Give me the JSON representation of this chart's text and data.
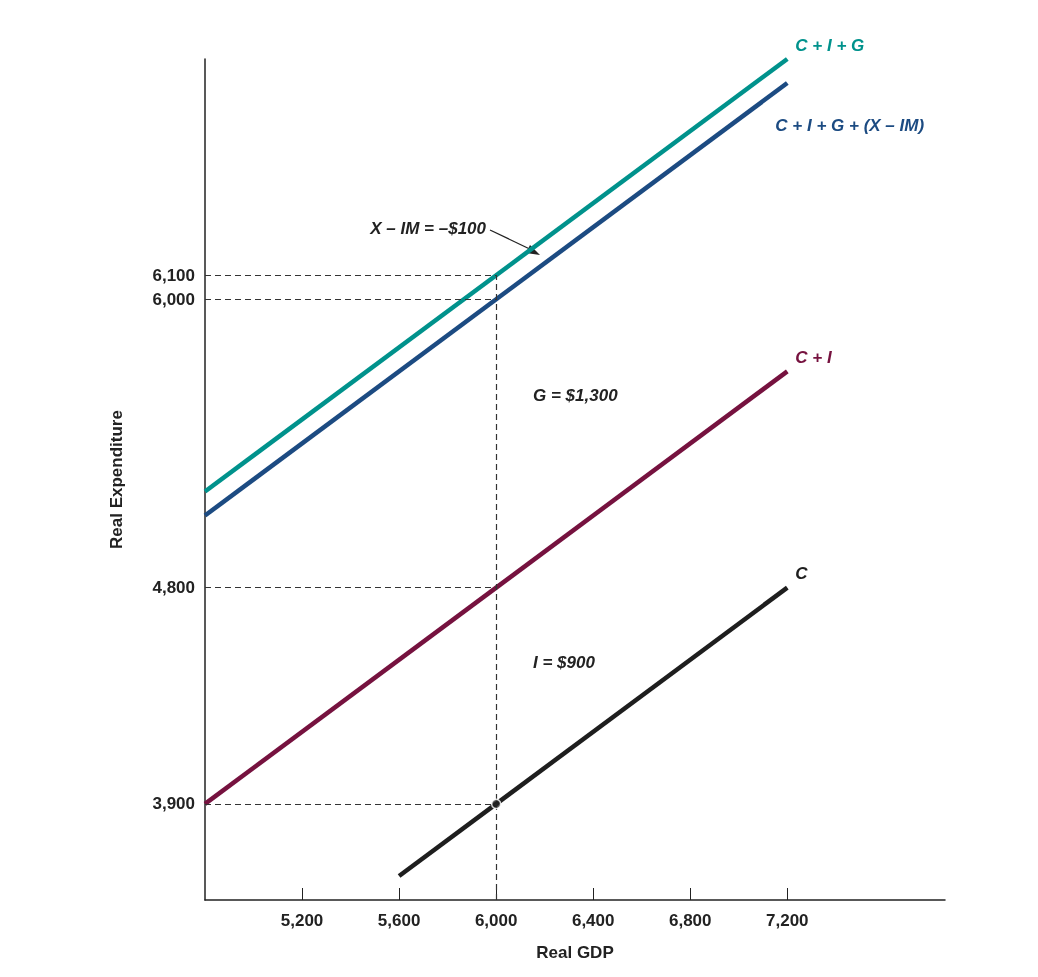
{
  "chart_data": {
    "type": "line",
    "xlabel": "Real GDP",
    "ylabel": "Real Expenditure",
    "xlim": [
      4800,
      7850
    ],
    "ylim": [
      3500,
      7000
    ],
    "xticks": [
      {
        "value": 5200,
        "label": "5,200"
      },
      {
        "value": 5600,
        "label": "5,600"
      },
      {
        "value": 6000,
        "label": "6,000"
      },
      {
        "value": 6400,
        "label": "6,400"
      },
      {
        "value": 6800,
        "label": "6,800"
      },
      {
        "value": 7200,
        "label": "7,200"
      }
    ],
    "yticks": [
      {
        "value": 3900,
        "label": "3,900"
      },
      {
        "value": 4800,
        "label": "4,800"
      },
      {
        "value": 6000,
        "label": "6,000"
      },
      {
        "value": 6100,
        "label": "6,100"
      }
    ],
    "series": [
      {
        "name": "C + I + G",
        "color": "#00928c",
        "x": [
          4800,
          7200
        ],
        "values": [
          5200,
          7000
        ]
      },
      {
        "name": "C + I + G + (X – IM)",
        "color": "#1c4b82",
        "x": [
          4800,
          7200
        ],
        "values": [
          5100,
          6900
        ]
      },
      {
        "name": "C + I",
        "color": "#76123f",
        "x": [
          4800,
          7200
        ],
        "values": [
          3900,
          5700
        ]
      },
      {
        "name": "C",
        "color": "#1e1e1e",
        "x": [
          5600,
          7200
        ],
        "values": [
          3600,
          4800
        ]
      },
      {
        "type": "scatter",
        "color": "#1e1e1e",
        "x": [
          6000
        ],
        "values": [
          3900
        ]
      }
    ],
    "ref_lines": [
      {
        "axis": "x",
        "value": 6000
      },
      {
        "axis": "y",
        "value": 6100
      },
      {
        "axis": "y",
        "value": 6000
      },
      {
        "axis": "y",
        "value": 4800
      },
      {
        "axis": "y",
        "value": 3900
      }
    ],
    "annotations": [
      "X – IM = –$100",
      "G = $1,300",
      "I = $900"
    ],
    "grid": false,
    "legend": false,
    "line_style": "solid"
  }
}
